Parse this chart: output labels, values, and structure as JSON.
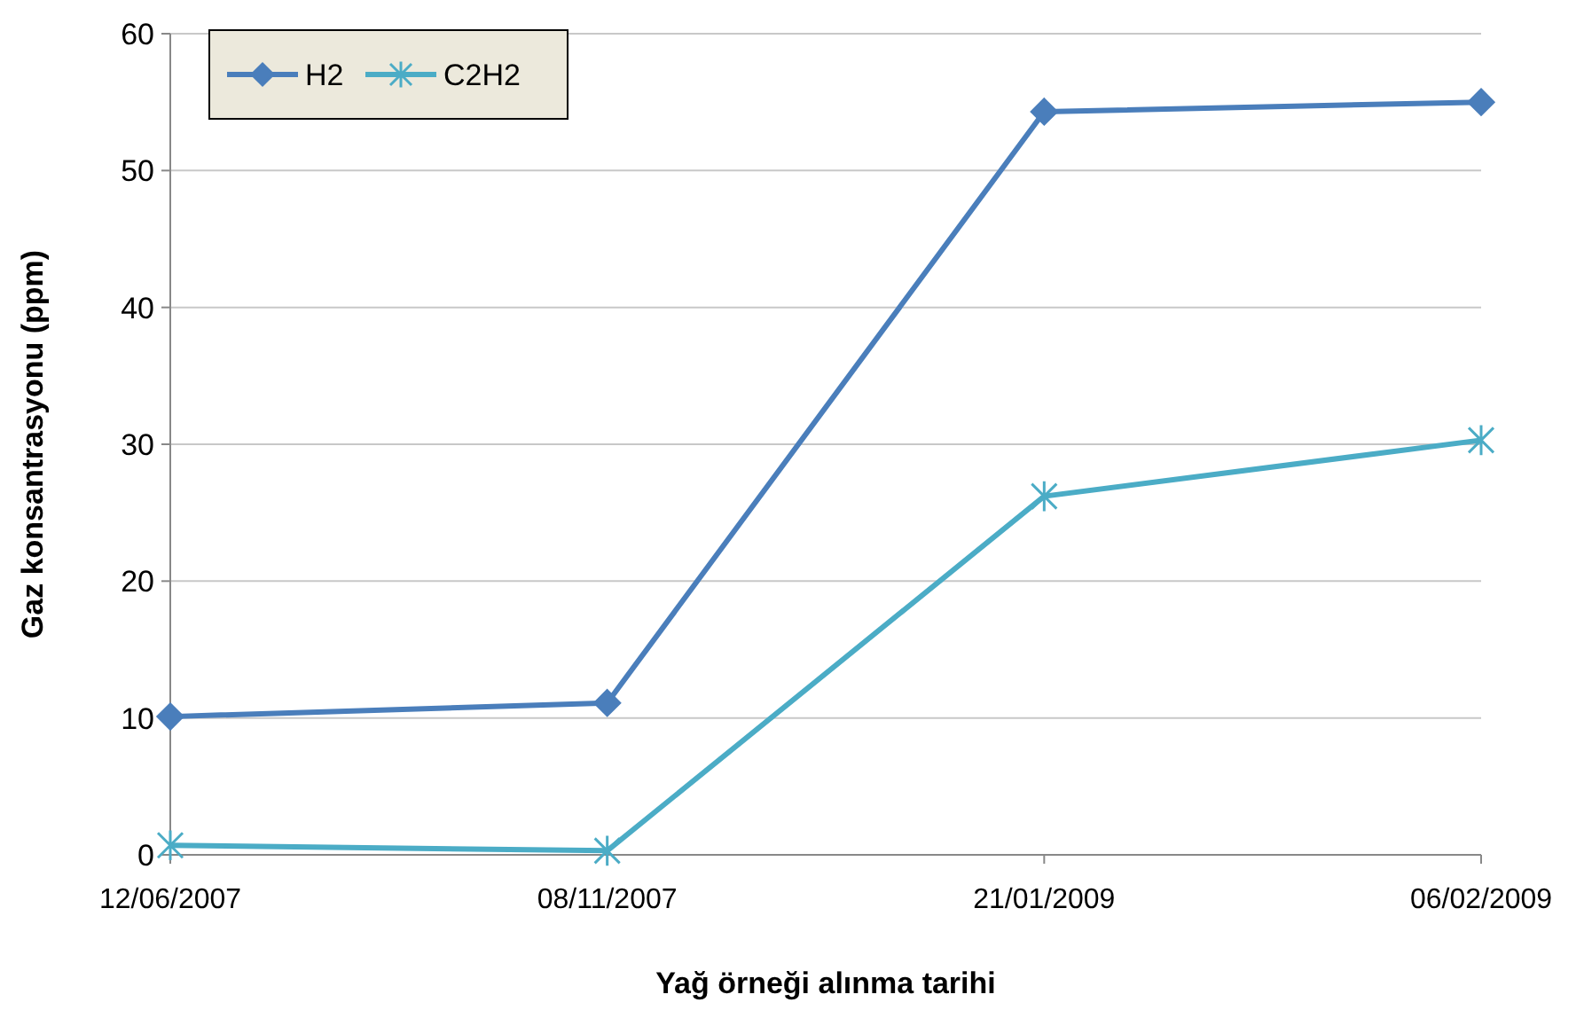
{
  "chart_data": {
    "type": "line",
    "xlabel": "Yağ örneği alınma tarihi",
    "ylabel": "Gaz konsantrasyonu (ppm)",
    "categories": [
      "12/06/2007",
      "08/11/2007",
      "21/01/2009",
      "06/02/2009"
    ],
    "series": [
      {
        "name": "H2",
        "color": "#4a7ebb",
        "marker": "diamond",
        "values": [
          10.1,
          11.1,
          54.3,
          55
        ]
      },
      {
        "name": "C2H2",
        "color": "#4bacc6",
        "marker": "cross",
        "values": [
          0.7,
          0.3,
          26.2,
          30.3
        ]
      }
    ],
    "ylim": [
      0,
      60
    ],
    "yticks": [
      0,
      10,
      20,
      30,
      40,
      50,
      60
    ],
    "grid": "y",
    "legend": "top left"
  }
}
